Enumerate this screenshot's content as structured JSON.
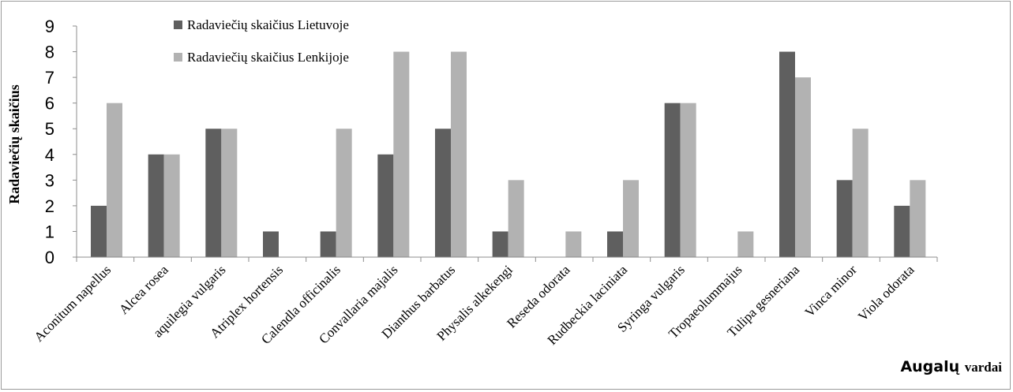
{
  "chart_data": {
    "type": "bar",
    "categories": [
      "Aconitum napellus",
      "Alcea rosea",
      "aquilegia vulgaris",
      "Atriplex hortensis",
      "Calendla officinalis",
      "Convallaria majalis",
      "Dianthus barbatus",
      "Physalis alkekengi",
      "Reseda odorata",
      "Rudbeckia laciniata",
      "Syringa vulgaris",
      "Tropaeolummajus",
      "Tulipa gesneriana",
      "Vinca minor",
      "Viola odorata"
    ],
    "series": [
      {
        "name": "Radaviečių skaičius Lietuvoje",
        "color": "#5f5f5f",
        "values": [
          2,
          4,
          5,
          1,
          1,
          4,
          5,
          1,
          0,
          1,
          6,
          0,
          8,
          3,
          2
        ]
      },
      {
        "name": "Radaviečių skaičius Lenkijoje",
        "color": "#b2b2b2",
        "values": [
          6,
          4,
          5,
          0,
          5,
          8,
          8,
          3,
          1,
          3,
          6,
          1,
          7,
          5,
          3
        ]
      }
    ],
    "yticks": [
      "0",
      "1",
      "2",
      "3",
      "4",
      "5",
      "6",
      "7",
      "8",
      "9"
    ],
    "ylim": [
      0,
      9
    ],
    "ylabel": "Radaviečių skaičius",
    "xlabel_main": "Augalų",
    "xlabel_sub": "vardai",
    "grid": false,
    "legend_position": "top-left"
  }
}
